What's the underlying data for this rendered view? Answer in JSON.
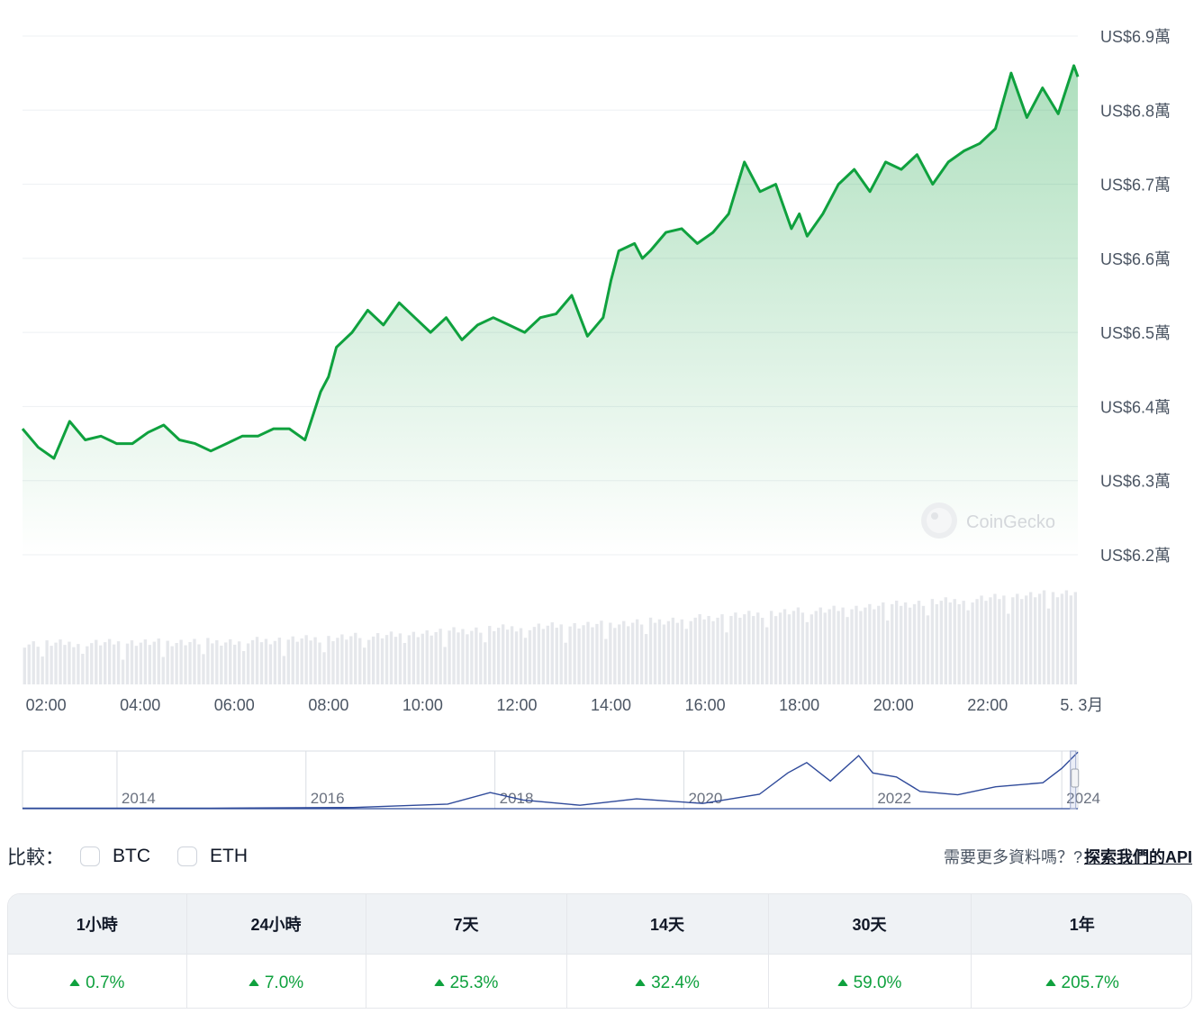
{
  "chart_data": {
    "type": "area",
    "y_ticks": [
      {
        "value": 69000,
        "label": "US$6.9萬"
      },
      {
        "value": 68000,
        "label": "US$6.8萬"
      },
      {
        "value": 67000,
        "label": "US$6.7萬"
      },
      {
        "value": 66000,
        "label": "US$6.6萬"
      },
      {
        "value": 65000,
        "label": "US$6.5萬"
      },
      {
        "value": 64000,
        "label": "US$6.4萬"
      },
      {
        "value": 63000,
        "label": "US$6.3萬"
      },
      {
        "value": 62000,
        "label": "US$6.2萬"
      }
    ],
    "ylim": [
      62000,
      69000
    ],
    "x_range": [
      "01:30",
      "23:55"
    ],
    "x_ticks": [
      "02:00",
      "04:00",
      "06:00",
      "08:00",
      "10:00",
      "12:00",
      "14:00",
      "16:00",
      "18:00",
      "20:00",
      "22:00",
      "5. 3月"
    ],
    "series": [
      {
        "x": [
          "01:30",
          "01:50",
          "02:10",
          "02:30",
          "02:50",
          "03:10",
          "03:30",
          "03:50",
          "04:10",
          "04:30",
          "04:50",
          "05:10",
          "05:30",
          "05:50",
          "06:10",
          "06:30",
          "06:50",
          "07:10",
          "07:30",
          "07:50",
          "08:00",
          "08:10",
          "08:30",
          "08:50",
          "09:10",
          "09:30",
          "09:50",
          "10:10",
          "10:30",
          "10:50",
          "11:10",
          "11:30",
          "11:50",
          "12:10",
          "12:30",
          "12:50",
          "13:10",
          "13:30",
          "13:50",
          "14:00",
          "14:10",
          "14:30",
          "14:40",
          "14:50",
          "15:10",
          "15:30",
          "15:50",
          "16:10",
          "16:30",
          "16:50",
          "17:10",
          "17:30",
          "17:50",
          "18:00",
          "18:10",
          "18:30",
          "18:50",
          "19:10",
          "19:30",
          "19:50",
          "20:10",
          "20:30",
          "20:50",
          "21:10",
          "21:30",
          "21:50",
          "22:10",
          "22:30",
          "22:50",
          "23:10",
          "23:30",
          "23:50",
          "23:55"
        ],
        "values": [
          63700,
          63450,
          63300,
          63800,
          63550,
          63600,
          63500,
          63500,
          63650,
          63750,
          63550,
          63500,
          63400,
          63500,
          63600,
          63600,
          63700,
          63700,
          63550,
          64200,
          64400,
          64800,
          65000,
          65300,
          65100,
          65400,
          65200,
          65000,
          65200,
          64900,
          65100,
          65200,
          65100,
          65000,
          65200,
          65250,
          65500,
          64950,
          65200,
          65700,
          66100,
          66200,
          66000,
          66100,
          66350,
          66400,
          66200,
          66350,
          66600,
          67300,
          66900,
          67000,
          66400,
          66600,
          66300,
          66600,
          67000,
          67200,
          66900,
          67300,
          67200,
          67400,
          67000,
          67300,
          67450,
          67550,
          67750,
          68500,
          67900,
          68300,
          67950,
          68600,
          68450
        ]
      }
    ],
    "volume": [
      {
        "x": "01:30",
        "value": 0.38
      },
      {
        "x": "04:00",
        "value": 0.39
      },
      {
        "x": "06:00",
        "value": 0.4
      },
      {
        "x": "08:00",
        "value": 0.43
      },
      {
        "x": "10:00",
        "value": 0.48
      },
      {
        "x": "12:00",
        "value": 0.53
      },
      {
        "x": "14:00",
        "value": 0.56
      },
      {
        "x": "16:00",
        "value": 0.62
      },
      {
        "x": "18:00",
        "value": 0.68
      },
      {
        "x": "20:00",
        "value": 0.74
      },
      {
        "x": "22:00",
        "value": 0.8
      },
      {
        "x": "23:55",
        "value": 0.86
      }
    ],
    "watermark": "CoinGecko",
    "line_color": "#0fa13e",
    "volume_color": "#e5e7eb",
    "navigator": {
      "x_ticks": [
        "2014",
        "2016",
        "2018",
        "2020",
        "2022",
        "2024"
      ],
      "line_color": "#2f4a9a",
      "series": [
        {
          "x": 2013.0,
          "v": 0.01
        },
        {
          "x": 2015.0,
          "v": 0.01
        },
        {
          "x": 2016.5,
          "v": 0.02
        },
        {
          "x": 2017.5,
          "v": 0.08
        },
        {
          "x": 2017.95,
          "v": 0.28
        },
        {
          "x": 2018.3,
          "v": 0.15
        },
        {
          "x": 2018.9,
          "v": 0.06
        },
        {
          "x": 2019.5,
          "v": 0.17
        },
        {
          "x": 2020.2,
          "v": 0.09
        },
        {
          "x": 2020.8,
          "v": 0.25
        },
        {
          "x": 2021.1,
          "v": 0.62
        },
        {
          "x": 2021.3,
          "v": 0.8
        },
        {
          "x": 2021.55,
          "v": 0.48
        },
        {
          "x": 2021.85,
          "v": 0.92
        },
        {
          "x": 2022.0,
          "v": 0.62
        },
        {
          "x": 2022.25,
          "v": 0.55
        },
        {
          "x": 2022.5,
          "v": 0.3
        },
        {
          "x": 2022.9,
          "v": 0.24
        },
        {
          "x": 2023.3,
          "v": 0.38
        },
        {
          "x": 2023.8,
          "v": 0.45
        },
        {
          "x": 2024.0,
          "v": 0.7
        },
        {
          "x": 2024.17,
          "v": 0.98
        }
      ]
    }
  },
  "compare": {
    "label": "比較：",
    "options": [
      "BTC",
      "ETH"
    ]
  },
  "api_prompt": {
    "text": "需要更多資料嗎？?",
    "link": "探索我們的API"
  },
  "performance": {
    "headers": [
      "1小時",
      "24小時",
      "7天",
      "14天",
      "30天",
      "1年"
    ],
    "values": [
      "0.7%",
      "7.0%",
      "25.3%",
      "32.4%",
      "59.0%",
      "205.7%"
    ],
    "up_color": "#0fa13e"
  }
}
